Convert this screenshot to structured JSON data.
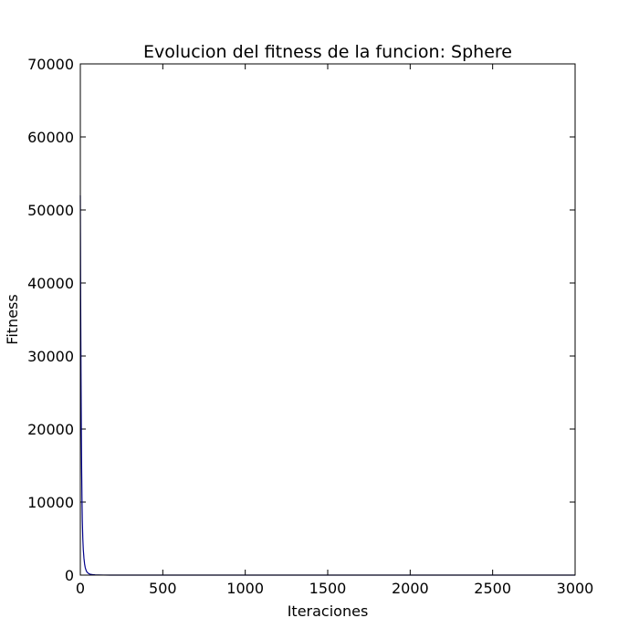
{
  "chart_data": {
    "type": "line",
    "title": "Evolucion del fitness de la funcion: Sphere",
    "xlabel": "Iteraciones",
    "ylabel": "Fitness",
    "xlim": [
      0,
      3000
    ],
    "ylim": [
      0,
      70000
    ],
    "xticks": [
      0,
      500,
      1000,
      1500,
      2000,
      2500,
      3000
    ],
    "yticks": [
      0,
      10000,
      20000,
      30000,
      40000,
      50000,
      60000,
      70000
    ],
    "xtick_labels": [
      "0",
      "500",
      "1000",
      "1500",
      "2000",
      "2500",
      "3000"
    ],
    "ytick_labels": [
      "0",
      "10000",
      "20000",
      "30000",
      "40000",
      "50000",
      "60000",
      "70000"
    ],
    "grid": false,
    "series": [
      {
        "color": "#00008b",
        "x": [
          0,
          2,
          4,
          6,
          8,
          10,
          12,
          15,
          18,
          22,
          26,
          30,
          35,
          40,
          50,
          60,
          75,
          90,
          110,
          140,
          180,
          250,
          400,
          700,
          1200,
          2000,
          3000
        ],
        "y": [
          52000,
          38000,
          28000,
          20000,
          14500,
          10500,
          7500,
          5000,
          3500,
          2300,
          1500,
          1000,
          650,
          420,
          220,
          120,
          60,
          30,
          15,
          6,
          3,
          1,
          0.5,
          0.2,
          0.1,
          0.05,
          0.02
        ]
      }
    ]
  }
}
